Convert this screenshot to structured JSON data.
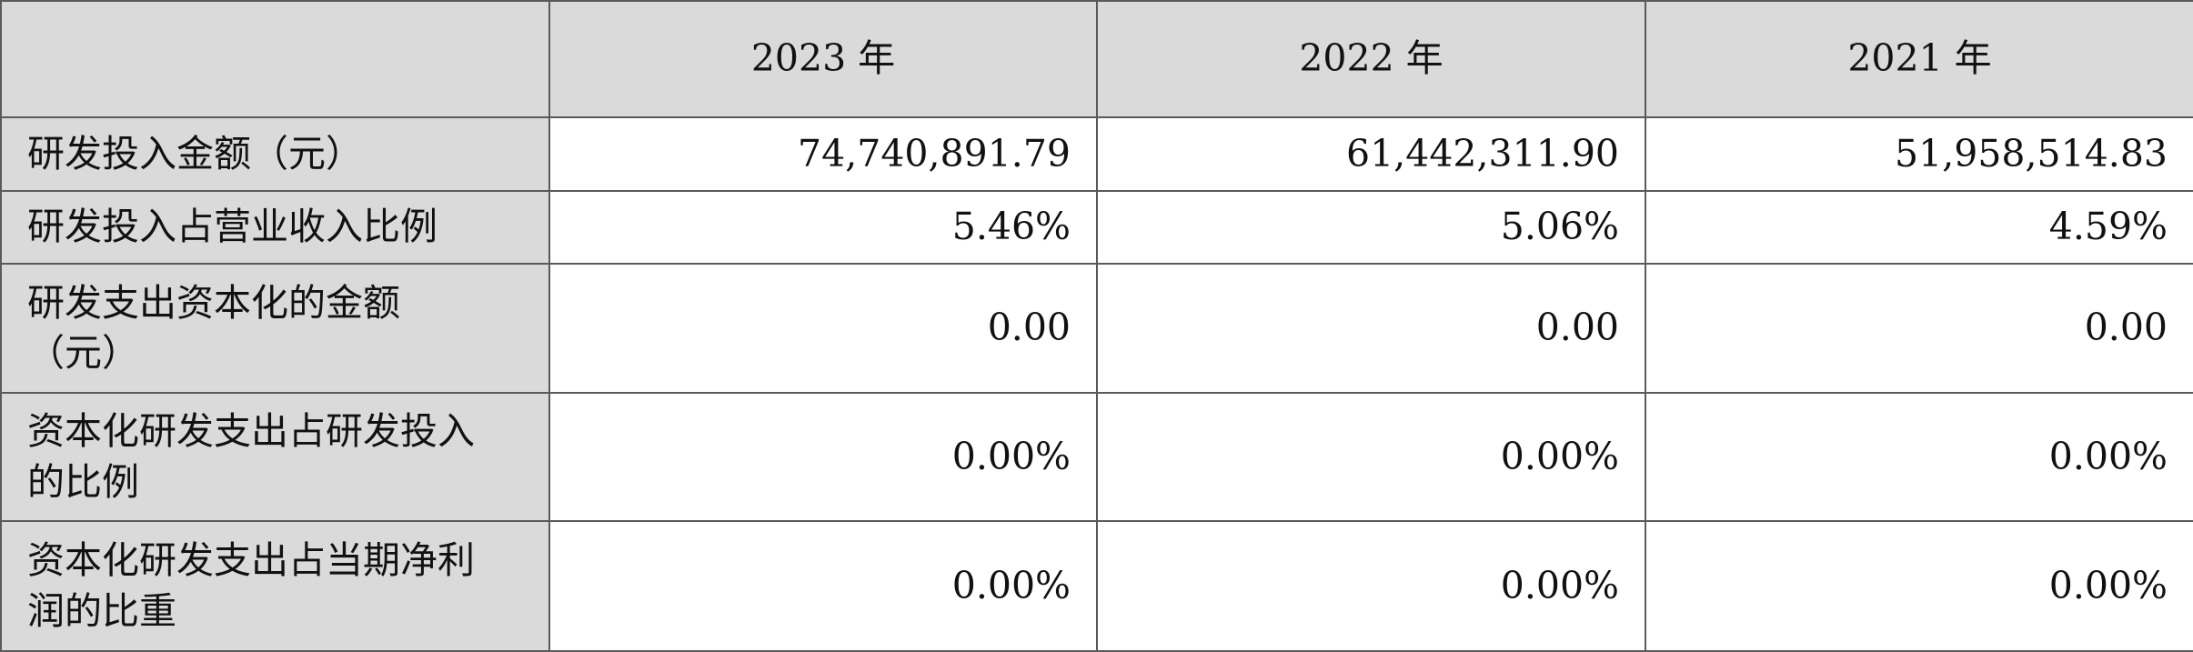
{
  "table": {
    "header": [
      "",
      "2023 年",
      "2022 年",
      "2021 年"
    ],
    "rows": [
      {
        "label": [
          "研发投入金额（元）"
        ],
        "values": [
          "74,740,891.79",
          "61,442,311.90",
          "51,958,514.83"
        ]
      },
      {
        "label": [
          "研发投入占营业收入比例"
        ],
        "values": [
          "5.46%",
          "5.06%",
          "4.59%"
        ]
      },
      {
        "label": [
          "研发支出资本化的金额",
          "（元）"
        ],
        "values": [
          "0.00",
          "0.00",
          "0.00"
        ]
      },
      {
        "label": [
          "资本化研发支出占研发投入",
          "的比例"
        ],
        "values": [
          "0.00%",
          "0.00%",
          "0.00%"
        ]
      },
      {
        "label": [
          "资本化研发支出占当期净利",
          "润的比重"
        ],
        "values": [
          "0.00%",
          "0.00%",
          "0.00%"
        ]
      }
    ]
  }
}
